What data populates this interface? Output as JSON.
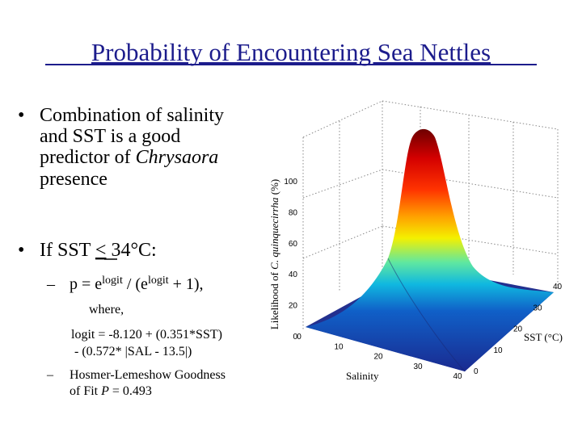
{
  "title": "Probability of Encountering Sea Nettles",
  "bullets": [
    {
      "lines": [
        "Combination of salinity",
        "and SST is a good",
        "predictor of"
      ],
      "italic": "Chrysaora",
      "last": "presence"
    },
    {
      "before": "If SST",
      "underlined": "<",
      "after": "34°C:",
      "sub": [
        {
          "dash": "–",
          "p": "p =",
          "e1": "e",
          "sup1": "logit",
          "mid": "/ (e",
          "sup2": "logit",
          "end": "+ 1),"
        },
        {
          "where": "where,",
          "logit": [
            "logit = -8.120 + (0.351*SST)",
            "- (0.572* |SAL - 13.5|)"
          ]
        },
        {
          "dash": "–",
          "lines": [
            "Hosmer-Lemeshow Goodness",
            "of Fit"
          ],
          "p_italic": "P",
          "fit": "= 0.493"
        }
      ]
    }
  ],
  "figure": {
    "z_label_before": "Likelihood of",
    "z_label_italic": "C. quinquecirrha",
    "z_label_after": "(%)",
    "z_ticks": [
      0,
      20,
      40,
      60,
      80,
      100
    ],
    "sst_label": "SST (°C)",
    "sst_ticks": [
      0,
      10,
      20,
      30,
      40
    ],
    "salinity_label": "Salinity",
    "salinity_ticks": [
      0,
      10,
      20,
      30,
      40
    ]
  }
}
